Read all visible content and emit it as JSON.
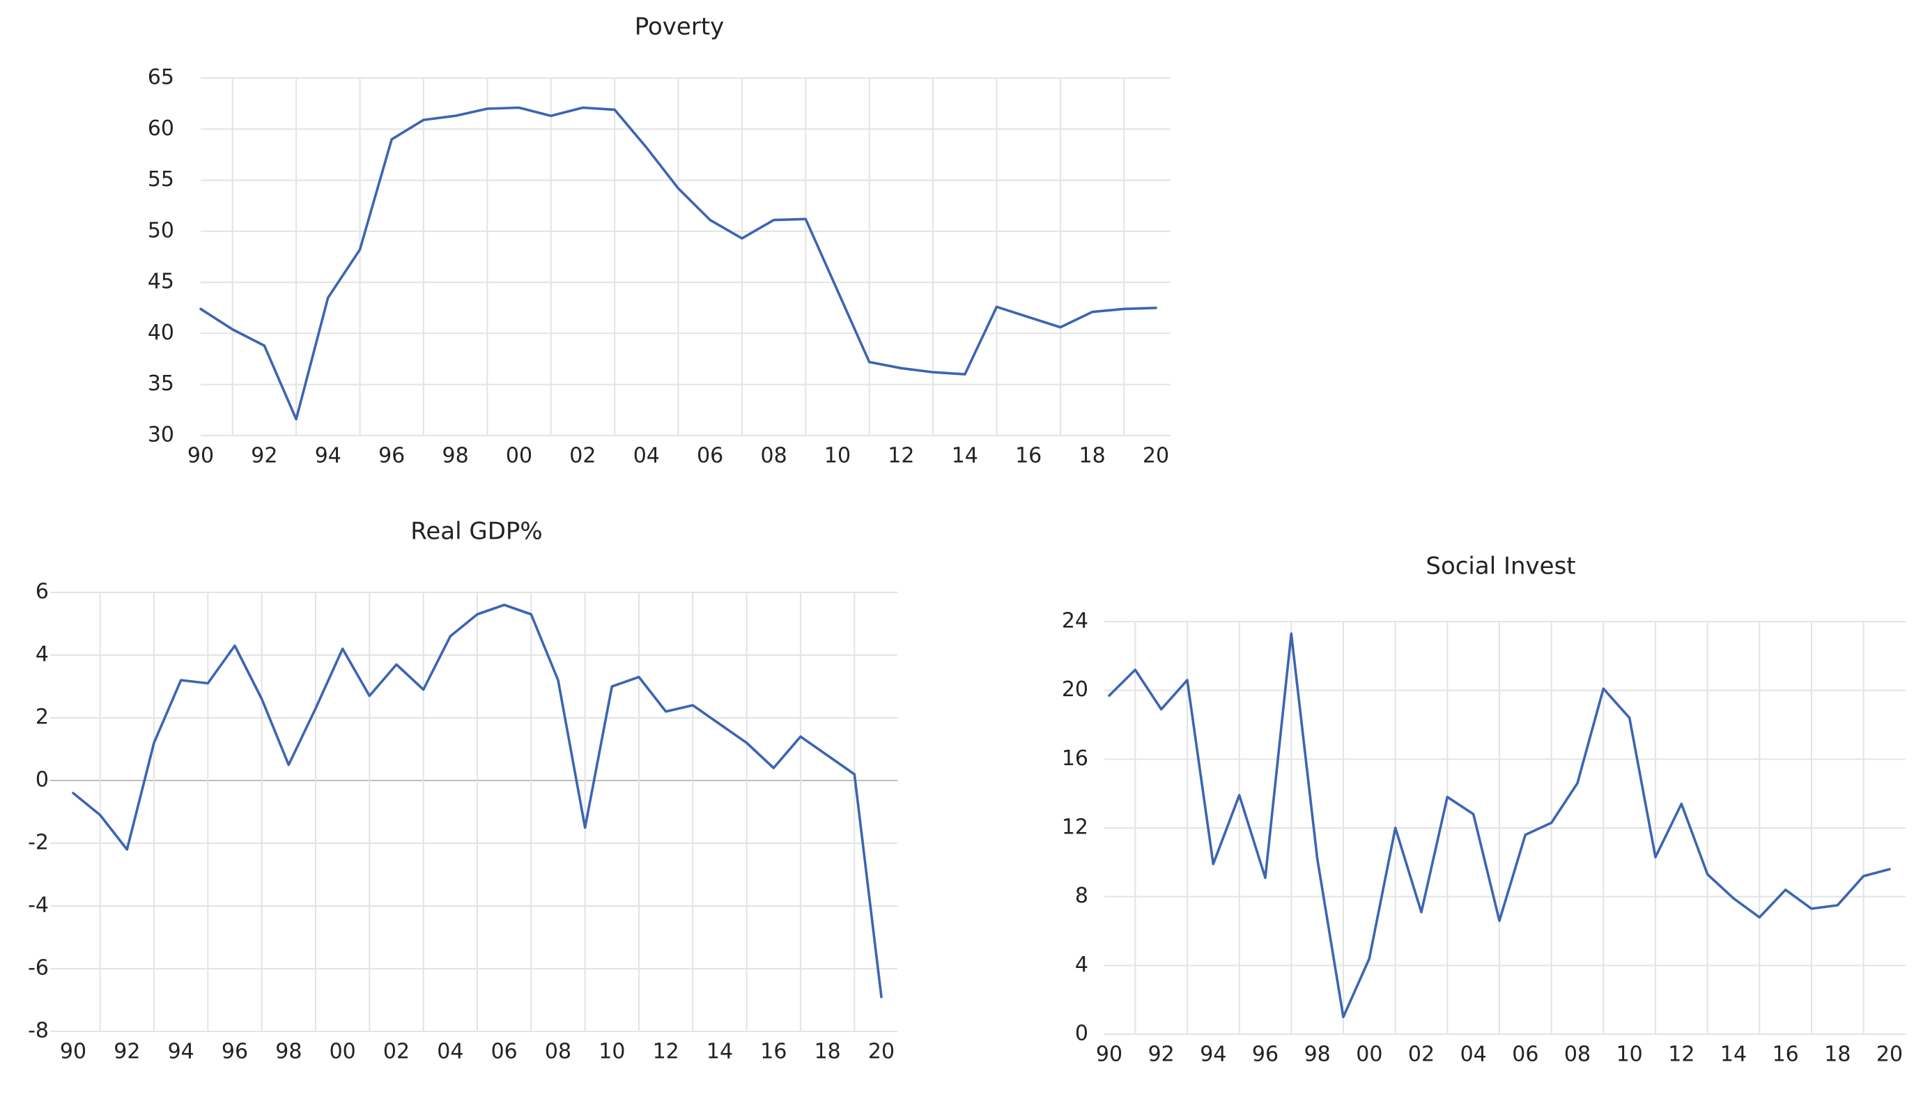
{
  "colors": {
    "series": "#3c65b1",
    "grid": "#e3e3e3",
    "zero_line": "#bdbdbd"
  },
  "chart_data": [
    {
      "id": "poverty",
      "type": "line",
      "title": "Poverty",
      "xlabel": "",
      "ylabel": "",
      "x_ticks": [
        "90",
        "92",
        "94",
        "96",
        "98",
        "00",
        "02",
        "04",
        "06",
        "08",
        "10",
        "12",
        "14",
        "16",
        "18",
        "20"
      ],
      "yticks": [
        30,
        35,
        40,
        45,
        50,
        55,
        60,
        65
      ],
      "ylim": [
        30,
        65
      ],
      "grid": true,
      "x": [
        1990,
        1991,
        1992,
        1993,
        1994,
        1995,
        1996,
        1997,
        1998,
        1999,
        2000,
        2001,
        2002,
        2003,
        2004,
        2005,
        2006,
        2007,
        2008,
        2009,
        2010,
        2011,
        2012,
        2013,
        2014,
        2015,
        2016,
        2017,
        2018,
        2019,
        2020
      ],
      "values": [
        42.4,
        40.4,
        38.8,
        31.6,
        43.5,
        48.2,
        59.0,
        60.9,
        61.3,
        62.0,
        62.1,
        61.3,
        62.1,
        61.9,
        58.2,
        54.2,
        51.1,
        49.3,
        51.1,
        51.2,
        44.2,
        37.2,
        36.6,
        36.2,
        36.0,
        42.6,
        41.6,
        40.6,
        42.1,
        42.4,
        42.5
      ]
    },
    {
      "id": "real-gdp",
      "type": "line",
      "title": "Real GDP%",
      "xlabel": "",
      "ylabel": "",
      "x_ticks": [
        "90",
        "92",
        "94",
        "96",
        "98",
        "00",
        "02",
        "04",
        "06",
        "08",
        "10",
        "12",
        "14",
        "16",
        "18",
        "20"
      ],
      "yticks": [
        -8,
        -6,
        -4,
        -2,
        0,
        2,
        4,
        6
      ],
      "ylim": [
        -8,
        6
      ],
      "grid": true,
      "x": [
        1990,
        1991,
        1992,
        1993,
        1994,
        1995,
        1996,
        1997,
        1998,
        1999,
        2000,
        2001,
        2002,
        2003,
        2004,
        2005,
        2006,
        2007,
        2008,
        2009,
        2010,
        2011,
        2012,
        2013,
        2014,
        2015,
        2016,
        2017,
        2018,
        2019,
        2020
      ],
      "values": [
        -0.4,
        -1.1,
        -2.2,
        1.2,
        3.2,
        3.1,
        4.3,
        2.6,
        0.5,
        2.3,
        4.2,
        2.7,
        3.7,
        2.9,
        4.6,
        5.3,
        5.6,
        5.3,
        3.2,
        -1.5,
        3.0,
        3.3,
        2.2,
        2.4,
        1.8,
        1.2,
        0.4,
        1.4,
        0.8,
        0.2,
        -6.9
      ]
    },
    {
      "id": "social-invest",
      "type": "line",
      "title": "Social Invest",
      "xlabel": "",
      "ylabel": "",
      "x_ticks": [
        "90",
        "92",
        "94",
        "96",
        "98",
        "00",
        "02",
        "04",
        "06",
        "08",
        "10",
        "12",
        "14",
        "16",
        "18",
        "20"
      ],
      "yticks": [
        0,
        4,
        8,
        12,
        16,
        20,
        24
      ],
      "ylim": [
        0,
        24
      ],
      "grid": true,
      "x": [
        1990,
        1991,
        1992,
        1993,
        1994,
        1995,
        1996,
        1997,
        1998,
        1999,
        2000,
        2001,
        2002,
        2003,
        2004,
        2005,
        2006,
        2007,
        2008,
        2009,
        2010,
        2011,
        2012,
        2013,
        2014,
        2015,
        2016,
        2017,
        2018,
        2019,
        2020
      ],
      "values": [
        19.7,
        21.2,
        18.9,
        20.6,
        9.9,
        13.9,
        9.1,
        23.3,
        10.2,
        1.0,
        4.4,
        12.0,
        7.1,
        13.8,
        12.8,
        6.6,
        11.6,
        12.3,
        14.6,
        20.1,
        18.4,
        10.3,
        13.4,
        9.3,
        7.9,
        6.8,
        8.4,
        7.3,
        7.5,
        9.2,
        9.6
      ]
    }
  ]
}
